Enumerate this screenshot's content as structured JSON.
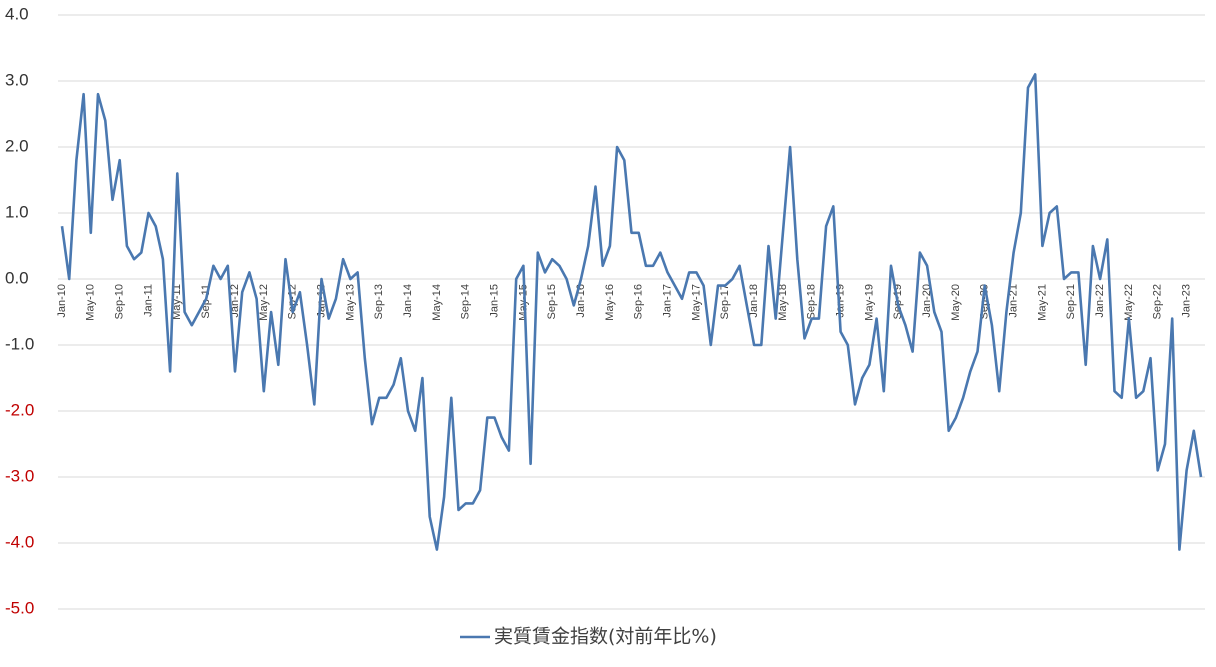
{
  "chart_data": {
    "type": "line",
    "categories": [
      "Jan-10",
      null,
      null,
      null,
      "May-10",
      null,
      null,
      null,
      "Sep-10",
      null,
      null,
      null,
      "Jan-11",
      null,
      null,
      null,
      "May-11",
      null,
      null,
      null,
      "Sep-11",
      null,
      null,
      null,
      "Jan-12",
      null,
      null,
      null,
      "May-12",
      null,
      null,
      null,
      "Sep-12",
      null,
      null,
      null,
      "Jan-13",
      null,
      null,
      null,
      "May-13",
      null,
      null,
      null,
      "Sep-13",
      null,
      null,
      null,
      "Jan-14",
      null,
      null,
      null,
      "May-14",
      null,
      null,
      null,
      "Sep-14",
      null,
      null,
      null,
      "Jan-15",
      null,
      null,
      null,
      "May-15",
      null,
      null,
      null,
      "Sep-15",
      null,
      null,
      null,
      "Jan-16",
      null,
      null,
      null,
      "May-16",
      null,
      null,
      null,
      "Sep-16",
      null,
      null,
      null,
      "Jan-17",
      null,
      null,
      null,
      "May-17",
      null,
      null,
      null,
      "Sep-17",
      null,
      null,
      null,
      "Jan-18",
      null,
      null,
      null,
      "May-18",
      null,
      null,
      null,
      "Sep-18",
      null,
      null,
      null,
      "Jan-19",
      null,
      null,
      null,
      "May-19",
      null,
      null,
      null,
      "Sep-19",
      null,
      null,
      null,
      "Jan-20",
      null,
      null,
      null,
      "May-20",
      null,
      null,
      null,
      "Sep-20",
      null,
      null,
      null,
      "Jan-21",
      null,
      null,
      null,
      "May-21",
      null,
      null,
      null,
      "Sep-21",
      null,
      null,
      null,
      "Jan-22",
      null,
      null,
      null,
      "May-22",
      null,
      null,
      null,
      "Sep-22",
      null,
      null,
      null,
      "Jan-23",
      null,
      null
    ],
    "series": [
      {
        "name": "実質賃金指数(対前年比%)",
        "color": "#4a78b0",
        "values": [
          0.8,
          0.0,
          1.8,
          2.8,
          0.7,
          2.8,
          2.4,
          1.2,
          1.8,
          0.5,
          0.3,
          0.4,
          1.0,
          0.8,
          0.3,
          -1.4,
          1.6,
          -0.5,
          -0.7,
          -0.5,
          -0.3,
          0.2,
          0.0,
          0.2,
          -1.4,
          -0.2,
          0.1,
          -0.3,
          -1.7,
          -0.5,
          -1.3,
          0.3,
          -0.5,
          -0.2,
          -1.0,
          -1.9,
          0.0,
          -0.6,
          -0.3,
          0.3,
          0.0,
          0.1,
          -1.2,
          -2.2,
          -1.8,
          -1.8,
          -1.6,
          -1.2,
          -2.0,
          -2.3,
          -1.5,
          -3.6,
          -4.1,
          -3.3,
          -1.8,
          -3.5,
          -3.4,
          -3.4,
          -3.2,
          -2.1,
          -2.1,
          -2.4,
          -2.6,
          0.0,
          0.2,
          -2.8,
          0.4,
          0.1,
          0.3,
          0.2,
          0.0,
          -0.4,
          0.0,
          0.5,
          1.4,
          0.2,
          0.5,
          2.0,
          1.8,
          0.7,
          0.7,
          0.2,
          0.2,
          0.4,
          0.1,
          -0.1,
          -0.3,
          0.1,
          0.1,
          -0.1,
          -1.0,
          -0.1,
          -0.1,
          0.0,
          0.2,
          -0.4,
          -1.0,
          -1.0,
          0.5,
          -0.6,
          0.7,
          2.0,
          0.3,
          -0.9,
          -0.6,
          -0.6,
          0.8,
          1.1,
          -0.8,
          -1.0,
          -1.9,
          -1.5,
          -1.3,
          -0.6,
          -1.7,
          0.2,
          -0.4,
          -0.7,
          -1.1,
          0.4,
          0.2,
          -0.5,
          -0.8,
          -2.3,
          -2.1,
          -1.8,
          -1.4,
          -1.1,
          -0.1,
          -0.7,
          -1.7,
          -0.5,
          0.4,
          1.0,
          2.9,
          3.1,
          0.5,
          1.0,
          1.1,
          0.0,
          0.1,
          0.1,
          -1.3,
          0.5,
          0.0,
          0.6,
          -1.7,
          -1.8,
          -0.6,
          -1.8,
          -1.7,
          -1.2,
          -2.9,
          -2.5,
          -0.6,
          -4.1,
          -2.9,
          -2.3,
          -3.0
        ]
      }
    ],
    "ylim": [
      -5,
      4
    ],
    "yticks": [
      {
        "value": 4,
        "label": "4.0"
      },
      {
        "value": 3,
        "label": "3.0"
      },
      {
        "value": 2,
        "label": "2.0"
      },
      {
        "value": 1,
        "label": "1.0"
      },
      {
        "value": 0,
        "label": "0.0"
      },
      {
        "value": -1,
        "label": "-1.0"
      },
      {
        "value": -2,
        "label": "-2.0"
      },
      {
        "value": -3,
        "label": "-3.0"
      },
      {
        "value": -4,
        "label": "-4.0"
      },
      {
        "value": -5,
        "label": "-5.0"
      }
    ],
    "ytick_label_colors": [
      "#333333",
      "#333333",
      "#333333",
      "#333333",
      "#333333",
      "#333333",
      "#c00000",
      "#c00000",
      "#c00000",
      "#c00000"
    ],
    "grid": true,
    "legend": "bottom"
  }
}
